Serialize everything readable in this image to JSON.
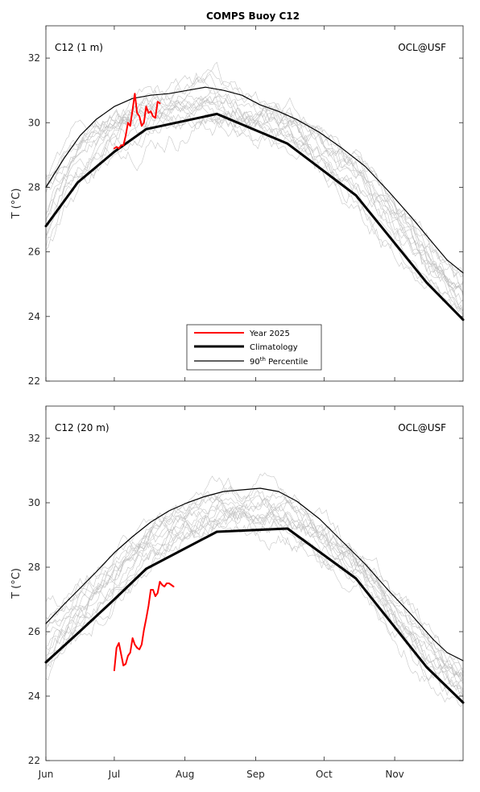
{
  "figure": {
    "title": "COMPS Buoy C12"
  },
  "colors": {
    "year": "#ff0000",
    "climatology": "#000000",
    "percentile": "#000000",
    "history": "#bdbdbd",
    "axis": "#262626"
  },
  "x_ticks": [
    {
      "label": "Jun",
      "day": 0
    },
    {
      "label": "Jul",
      "day": 30
    },
    {
      "label": "Aug",
      "day": 61
    },
    {
      "label": "Sep",
      "day": 92
    },
    {
      "label": "Oct",
      "day": 122
    },
    {
      "label": "Nov",
      "day": 153
    }
  ],
  "legend": {
    "items": [
      {
        "label": "Year 2025",
        "style": "year"
      },
      {
        "label": "Climatology",
        "style": "climatology"
      },
      {
        "label": "90",
        "sup": "th",
        "rest": " Percentile",
        "style": "percentile"
      }
    ]
  },
  "chart_data": [
    {
      "type": "line",
      "panel_label": "C12 (1 m)",
      "credit": "OCL@USF",
      "ylabel": "T (°C)",
      "xlim_days": [
        0,
        183
      ],
      "ylim": [
        22,
        33
      ],
      "yticks": [
        22,
        24,
        26,
        28,
        30,
        32
      ],
      "series": [
        {
          "name": "Year 2025",
          "style": "year",
          "x": [
            30,
            31,
            32,
            33,
            34,
            35,
            36,
            37,
            38,
            39,
            40,
            41,
            42,
            43,
            44,
            45,
            46,
            47,
            48,
            49,
            50,
            51,
            52,
            53,
            54,
            55,
            56
          ],
          "y": [
            29.2,
            29.25,
            29.2,
            29.3,
            29.3,
            29.6,
            30.0,
            29.9,
            30.4,
            30.9,
            30.3,
            30.2,
            29.9,
            30.0,
            30.5,
            30.3,
            30.35,
            30.2,
            30.15,
            30.65,
            30.6,
            null,
            null,
            null,
            null,
            null,
            null
          ]
        },
        {
          "name": "Climatology",
          "style": "climatology",
          "x": [
            0,
            14,
            30,
            44,
            75,
            106,
            136,
            167,
            183
          ],
          "y": [
            26.8,
            28.15,
            29.1,
            29.8,
            30.27,
            29.35,
            27.75,
            25.05,
            23.9
          ]
        },
        {
          "name": "90th Percentile",
          "style": "percentile",
          "x": [
            0,
            8,
            15,
            22,
            30,
            38,
            46,
            54,
            62,
            70,
            78,
            86,
            94,
            102,
            110,
            120,
            130,
            140,
            150,
            160,
            170,
            176,
            183
          ],
          "y": [
            28.0,
            28.9,
            29.6,
            30.1,
            30.5,
            30.75,
            30.85,
            30.9,
            31.0,
            31.1,
            31.0,
            30.85,
            30.55,
            30.35,
            30.1,
            29.7,
            29.2,
            28.65,
            27.9,
            27.1,
            26.25,
            25.75,
            25.35
          ]
        }
      ]
    },
    {
      "type": "line",
      "panel_label": "C12 (20 m)",
      "credit": "OCL@USF",
      "ylabel": "T (°C)",
      "xlim_days": [
        0,
        183
      ],
      "ylim": [
        22,
        33
      ],
      "yticks": [
        22,
        24,
        26,
        28,
        30,
        32
      ],
      "series": [
        {
          "name": "Year 2025",
          "style": "year",
          "x": [
            30,
            31,
            32,
            33,
            34,
            35,
            36,
            37,
            38,
            39,
            40,
            41,
            42,
            43,
            44,
            45,
            46,
            47,
            48,
            49,
            50,
            51,
            52,
            53,
            54,
            55,
            56
          ],
          "y": [
            24.8,
            25.5,
            25.65,
            25.3,
            24.95,
            25.0,
            25.25,
            25.35,
            25.8,
            25.6,
            25.5,
            25.45,
            25.6,
            26.05,
            26.4,
            26.8,
            27.3,
            27.3,
            27.1,
            27.2,
            27.55,
            27.45,
            27.4,
            27.5,
            27.5,
            27.45,
            27.4
          ]
        },
        {
          "name": "Climatology",
          "style": "climatology",
          "x": [
            0,
            14,
            30,
            44,
            75,
            106,
            136,
            167,
            183
          ],
          "y": [
            25.05,
            25.95,
            27.0,
            27.95,
            29.1,
            29.2,
            27.65,
            24.9,
            23.8
          ]
        },
        {
          "name": "90th Percentile",
          "style": "percentile",
          "x": [
            0,
            8,
            15,
            22,
            30,
            38,
            46,
            54,
            62,
            70,
            78,
            86,
            94,
            102,
            110,
            120,
            130,
            140,
            150,
            160,
            170,
            176,
            183
          ],
          "y": [
            26.25,
            26.85,
            27.35,
            27.85,
            28.45,
            28.95,
            29.4,
            29.75,
            30.0,
            30.2,
            30.35,
            30.4,
            30.45,
            30.35,
            30.05,
            29.5,
            28.8,
            28.1,
            27.3,
            26.55,
            25.75,
            25.35,
            25.1
          ]
        }
      ]
    }
  ]
}
